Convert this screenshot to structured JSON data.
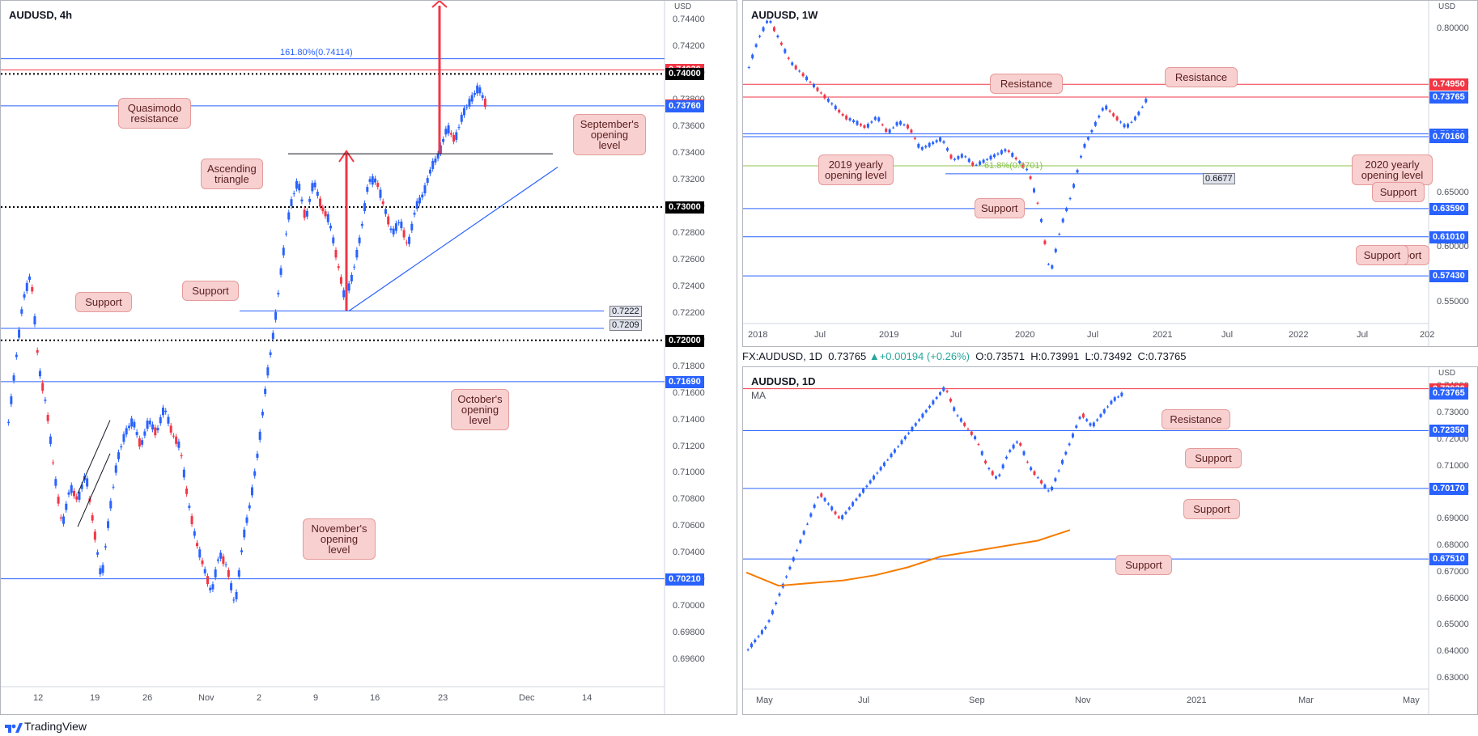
{
  "chart_data": [
    {
      "type": "candlestick",
      "title": "AUDUSD, 4h",
      "currency_label": "USD",
      "ylim": [
        0.694,
        0.745
      ],
      "y_ticks": [
        "0.74400",
        "0.74200",
        "0.74000",
        "0.73800",
        "0.73600",
        "0.73400",
        "0.73200",
        "0.73000",
        "0.72800",
        "0.72600",
        "0.72400",
        "0.72200",
        "0.72000",
        "0.71800",
        "0.71600",
        "0.71400",
        "0.71200",
        "0.71000",
        "0.70800",
        "0.70600",
        "0.70400",
        "0.70200",
        "0.70000",
        "0.69800",
        "0.69600"
      ],
      "x_ticks": [
        "12",
        "19",
        "26",
        "Nov",
        "2",
        "9",
        "16",
        "23",
        "Dec",
        "14"
      ],
      "price_tags": [
        {
          "value": "0.74030",
          "color": "#f23645"
        },
        {
          "value": "0.74000",
          "color": "#000000"
        },
        {
          "value": "0.73765",
          "color": "#f23645"
        },
        {
          "value": "0.73760",
          "color": "#2962ff"
        },
        {
          "value": "0.73000",
          "color": "#000000"
        },
        {
          "value": "0.72000",
          "color": "#000000"
        },
        {
          "value": "0.71690",
          "color": "#2962ff"
        },
        {
          "value": "0.70210",
          "color": "#2962ff"
        }
      ],
      "levels": [
        {
          "value": 0.74114,
          "style": "solid",
          "color": "#2962ff",
          "label": "161.80%(0.74114)"
        },
        {
          "value": 0.7403,
          "style": "solid",
          "color": "#f23645"
        },
        {
          "value": 0.74,
          "style": "dotted",
          "color": "#000000"
        },
        {
          "value": 0.7376,
          "style": "solid",
          "color": "#2962ff"
        },
        {
          "value": 0.73,
          "style": "dotted",
          "color": "#000000"
        },
        {
          "value": 0.72,
          "style": "dotted",
          "color": "#000000"
        },
        {
          "value": 0.7169,
          "style": "solid",
          "color": "#2962ff"
        },
        {
          "value": 0.7021,
          "style": "solid",
          "color": "#2962ff"
        }
      ],
      "box_labels": [
        "0.7222",
        "0.7209"
      ],
      "callouts": [
        {
          "text": "Quasimodo\nresistance"
        },
        {
          "text": "September's\nopening\nlevel"
        },
        {
          "text": "Ascending\ntriangle"
        },
        {
          "text": "Support"
        },
        {
          "text": "Support"
        },
        {
          "text": "October's\nopening\nlevel"
        },
        {
          "text": "November's\nopening\nlevel"
        }
      ],
      "price_path": [
        0.713,
        0.718,
        0.723,
        0.725,
        0.718,
        0.715,
        0.71,
        0.706,
        0.709,
        0.708,
        0.71,
        0.706,
        0.702,
        0.707,
        0.711,
        0.713,
        0.714,
        0.712,
        0.714,
        0.713,
        0.715,
        0.713,
        0.712,
        0.708,
        0.705,
        0.703,
        0.701,
        0.704,
        0.703,
        0.7,
        0.705,
        0.708,
        0.712,
        0.717,
        0.721,
        0.726,
        0.73,
        0.732,
        0.729,
        0.732,
        0.73,
        0.729,
        0.726,
        0.723,
        0.725,
        0.728,
        0.732,
        0.732,
        0.73,
        0.728,
        0.729,
        0.727,
        0.73,
        0.731,
        0.733,
        0.734,
        0.736,
        0.735,
        0.737,
        0.738,
        0.739,
        0.7376
      ]
    },
    {
      "type": "candlestick",
      "title": "AUDUSD, 1W",
      "currency_label": "USD",
      "ylim": [
        0.53,
        0.82
      ],
      "y_ticks": [
        "0.80000",
        "0.75000",
        "0.70000",
        "0.65000",
        "0.60000",
        "0.55000"
      ],
      "x_ticks": [
        "2018",
        "Jul",
        "2019",
        "Jul",
        "2020",
        "Jul",
        "2021",
        "Jul",
        "2022",
        "Jul",
        "202"
      ],
      "price_tags": [
        {
          "value": "0.74950",
          "color": "#f23645"
        },
        {
          "value": "0.73790",
          "color": "#f23645"
        },
        {
          "value": "0.73765",
          "color": "#2962ff"
        },
        {
          "value": "0.70420",
          "color": "#2962ff"
        },
        {
          "value": "0.70160",
          "color": "#2962ff"
        },
        {
          "value": "0.63590",
          "color": "#2962ff"
        },
        {
          "value": "0.61010",
          "color": "#2962ff"
        },
        {
          "value": "0.57430",
          "color": "#2962ff"
        }
      ],
      "levels": [
        {
          "value": 0.7495,
          "color": "#f23645"
        },
        {
          "value": 0.7379,
          "color": "#f23645"
        },
        {
          "value": 0.7042,
          "color": "#2962ff"
        },
        {
          "value": 0.7016,
          "color": "#2962ff"
        },
        {
          "value": 0.675,
          "color": "#8bc34a"
        },
        {
          "value": 0.6359,
          "color": "#2962ff"
        },
        {
          "value": 0.6101,
          "color": "#2962ff"
        },
        {
          "value": 0.5743,
          "color": "#2962ff"
        }
      ],
      "box_labels": [
        "0.6677"
      ],
      "fib_label": "61.8%(0.6701)",
      "callouts": [
        {
          "text": "Resistance"
        },
        {
          "text": "Resistance"
        },
        {
          "text": "2019 yearly\nopening level"
        },
        {
          "text": "Support"
        },
        {
          "text": "2020 yearly\nopening level"
        },
        {
          "text": "Support"
        },
        {
          "text": "Support"
        },
        {
          "text": "Support"
        }
      ],
      "price_path": [
        0.76,
        0.79,
        0.81,
        0.79,
        0.77,
        0.76,
        0.75,
        0.74,
        0.73,
        0.72,
        0.715,
        0.71,
        0.72,
        0.705,
        0.715,
        0.71,
        0.69,
        0.695,
        0.7,
        0.68,
        0.685,
        0.675,
        0.68,
        0.685,
        0.69,
        0.68,
        0.67,
        0.635,
        0.575,
        0.62,
        0.65,
        0.69,
        0.71,
        0.73,
        0.72,
        0.71,
        0.72,
        0.7376
      ]
    },
    {
      "type": "candlestick",
      "title": "AUDUSD, 1D",
      "indicator_label": "MA",
      "currency_label": "USD",
      "ylim": [
        0.626,
        0.745
      ],
      "y_ticks": [
        "0.74000",
        "0.73000",
        "0.72000",
        "0.71000",
        "0.70000",
        "0.69000",
        "0.68000",
        "0.67000",
        "0.66000",
        "0.65000",
        "0.64000",
        "0.63000"
      ],
      "x_ticks": [
        "May",
        "Jul",
        "Sep",
        "Nov",
        "2021",
        "Mar",
        "May"
      ],
      "price_tags": [
        {
          "value": "0.73930",
          "color": "#f23645"
        },
        {
          "value": "0.73765",
          "color": "#2962ff"
        },
        {
          "value": "0.72350",
          "color": "#2962ff"
        },
        {
          "value": "0.70170",
          "color": "#2962ff"
        },
        {
          "value": "0.67510",
          "color": "#2962ff"
        }
      ],
      "levels": [
        {
          "value": 0.7393,
          "color": "#f23645"
        },
        {
          "value": 0.7235,
          "color": "#2962ff"
        },
        {
          "value": 0.7017,
          "color": "#2962ff"
        },
        {
          "value": 0.6751,
          "color": "#2962ff"
        }
      ],
      "callouts": [
        {
          "text": "Resistance"
        },
        {
          "text": "Support"
        },
        {
          "text": "Support"
        },
        {
          "text": "Support"
        }
      ],
      "price_path": [
        0.64,
        0.645,
        0.65,
        0.66,
        0.67,
        0.68,
        0.69,
        0.7,
        0.695,
        0.69,
        0.695,
        0.7,
        0.705,
        0.71,
        0.715,
        0.72,
        0.725,
        0.73,
        0.735,
        0.74,
        0.73,
        0.725,
        0.72,
        0.71,
        0.705,
        0.715,
        0.72,
        0.71,
        0.705,
        0.7,
        0.71,
        0.72,
        0.73,
        0.725,
        0.73,
        0.735,
        0.7376
      ],
      "ma_path": [
        0.67,
        0.665,
        0.666,
        0.667,
        0.669,
        0.672,
        0.676,
        0.678,
        0.68,
        0.682,
        0.686
      ]
    }
  ],
  "ohlc_bar": {
    "symbol": "FX:AUDUSD, 1D",
    "last": "0.73765",
    "change": "+0.00194 (+0.26%)",
    "o": "O:0.73571",
    "h": "H:0.73991",
    "l": "L:0.73492",
    "c": "C:0.73765"
  },
  "footer": {
    "brand": "TradingView"
  }
}
